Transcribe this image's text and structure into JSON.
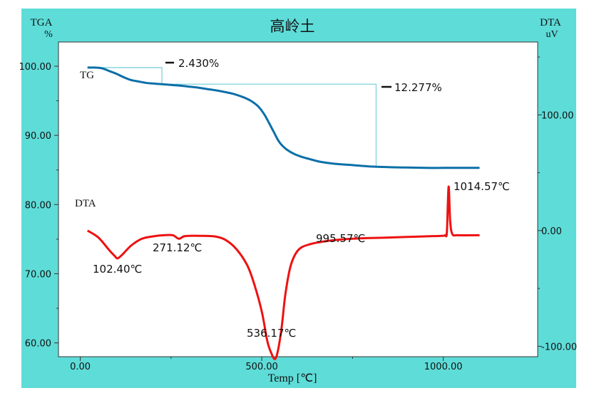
{
  "chart_data": {
    "type": "line",
    "title": "高岭土",
    "left_axis": {
      "label_line1": "TGA",
      "label_line2": "%",
      "ticks": [
        "100.00",
        "90.00",
        "80.00",
        "70.00",
        "60.00"
      ],
      "range": [
        58.0,
        103.5
      ]
    },
    "right_axis": {
      "label_line1": "DTA",
      "label_line2": "uV",
      "ticks": [
        "100.00",
        "0.00",
        "-100.00"
      ],
      "range": [
        -109.0,
        163.0
      ]
    },
    "x_axis": {
      "label": "Temp [℃]",
      "ticks": [
        "0.00",
        "500.00",
        "1000.00"
      ],
      "range": [
        -60,
        1260
      ]
    },
    "series": [
      {
        "name": "TG",
        "axis": "left",
        "color": "#0a6fa8",
        "x": [
          20,
          40,
          60,
          80,
          100,
          120,
          140,
          160,
          180,
          200,
          225,
          250,
          275,
          300,
          325,
          350,
          375,
          400,
          425,
          450,
          470,
          490,
          505,
          515,
          525,
          535,
          545,
          555,
          570,
          590,
          610,
          630,
          660,
          700,
          750,
          800,
          850,
          900,
          950,
          1000,
          1050,
          1100
        ],
        "y": [
          99.8,
          99.8,
          99.7,
          99.3,
          98.9,
          98.4,
          98.0,
          97.8,
          97.6,
          97.5,
          97.4,
          97.3,
          97.2,
          97.05,
          96.9,
          96.7,
          96.5,
          96.25,
          95.95,
          95.5,
          95.0,
          94.2,
          93.2,
          92.3,
          91.3,
          90.3,
          89.3,
          88.6,
          87.9,
          87.3,
          86.9,
          86.6,
          86.2,
          85.9,
          85.7,
          85.5,
          85.4,
          85.35,
          85.3,
          85.3,
          85.3,
          85.3
        ]
      },
      {
        "name": "DTA",
        "axis": "right",
        "color": "#ee1111",
        "x": [
          20,
          50,
          80,
          95,
          102.4,
          115,
          140,
          170,
          200,
          230,
          255,
          271.12,
          285,
          300,
          330,
          370,
          400,
          430,
          460,
          480,
          500,
          515,
          525,
          536.17,
          545,
          555,
          565,
          580,
          600,
          630,
          680,
          750,
          850,
          950,
          995.57,
          1005,
          1010,
          1014.57,
          1019,
          1025,
          1040,
          1100
        ],
        "y": [
          0,
          -6,
          -17,
          -22,
          -24,
          -21,
          -13,
          -7,
          -5,
          -4,
          -4,
          -7,
          -5,
          -4.5,
          -4.5,
          -5,
          -8,
          -16,
          -30,
          -47,
          -70,
          -95,
          -105,
          -111,
          -103,
          -83,
          -55,
          -30,
          -17,
          -12,
          -9,
          -7,
          -6,
          -5,
          -4.5,
          -4,
          -1,
          38,
          8,
          -3,
          -4,
          -4
        ]
      }
    ],
    "annotations": [
      {
        "text": "TG",
        "series": "TG"
      },
      {
        "text": "DTA",
        "series": "DTA"
      },
      {
        "text": "2.430%",
        "kind": "mass-loss"
      },
      {
        "text": "12.277%",
        "kind": "mass-loss"
      },
      {
        "text": "102.40℃",
        "x": 102.4,
        "series": "DTA"
      },
      {
        "text": "271.12℃",
        "x": 271.12,
        "series": "DTA"
      },
      {
        "text": "536.17℃",
        "x": 536.17,
        "series": "DTA"
      },
      {
        "text": "995.57℃",
        "x": 995.57,
        "series": "DTA"
      },
      {
        "text": "1014.57℃",
        "x": 1014.57,
        "series": "DTA"
      }
    ],
    "step_lines": {
      "color": "#7fd2dc",
      "step1": {
        "x_start": 20,
        "x_end": 225,
        "y_top": 99.8,
        "y_bottom": 97.4
      },
      "step2": {
        "x_start": 225,
        "x_end": 815,
        "y_top": 97.4,
        "y_bottom": 85.3
      }
    },
    "grid": false
  }
}
